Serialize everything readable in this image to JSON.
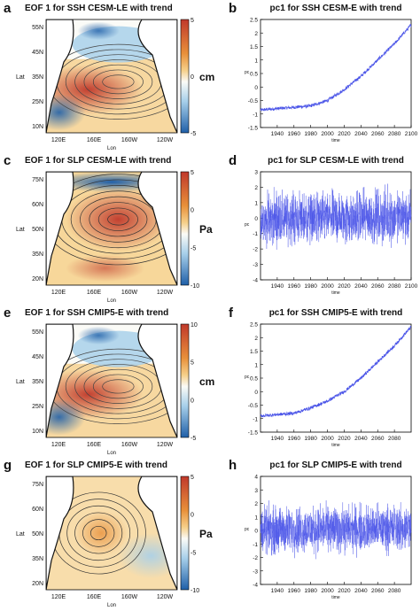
{
  "colors": {
    "warm_dark": "#c0392b",
    "warm_light": "#f6d08a",
    "neutral": "#fbfbf7",
    "cool_light": "#a8d0ea",
    "cool_dark": "#1f5fa8",
    "series": "#4b55e8",
    "land": "#ffffff",
    "coast": "#111111"
  },
  "chart_data": [
    {
      "panel": "a",
      "type": "heatmap",
      "title": "EOF 1  for SSH CESM-LE with trend",
      "xlabel": "Lon",
      "ylabel": "Lat",
      "xticks": [
        "120E",
        "160E",
        "160W",
        "120W"
      ],
      "yticks": [
        "10N",
        "25N",
        "35N",
        "45N",
        "55N"
      ],
      "colorbar": {
        "ticks": [
          "5",
          "0",
          "-5"
        ],
        "unit": "cm",
        "range": [
          -5,
          5
        ]
      },
      "pattern": "ssh"
    },
    {
      "panel": "b",
      "type": "line",
      "title": "pc1  for SSH CESM-E with trend",
      "xlabel": "time",
      "ylabel": "pc",
      "xticks": [
        "1940",
        "1960",
        "1980",
        "2000",
        "2020",
        "2040",
        "2060",
        "2080",
        "2100"
      ],
      "yticks": [
        "2.5",
        "2",
        "1.5",
        "1",
        "0.5",
        "0",
        "-0.5",
        "-1",
        "-1.5"
      ],
      "xlim": [
        1920,
        2100
      ],
      "ylim": [
        -1.5,
        2.5
      ],
      "series": [
        {
          "x": [
            1920,
            1940,
            1960,
            1980,
            2000,
            2020,
            2040,
            2060,
            2080,
            2100
          ],
          "values": [
            -0.85,
            -0.8,
            -0.75,
            -0.7,
            -0.5,
            -0.1,
            0.4,
            1.0,
            1.6,
            2.3
          ]
        }
      ],
      "noise": "low"
    },
    {
      "panel": "c",
      "type": "heatmap",
      "title": "EOF 1  for SLP CESM-LE with trend",
      "xlabel": "Lon",
      "ylabel": "Lat",
      "xticks": [
        "120E",
        "160E",
        "160W",
        "120W"
      ],
      "yticks": [
        "20N",
        "35N",
        "50N",
        "60N",
        "75N"
      ],
      "colorbar": {
        "ticks": [
          "5",
          "0",
          "-5",
          "-10"
        ],
        "unit": "Pa",
        "range": [
          -10,
          5
        ]
      },
      "pattern": "slp_cesm"
    },
    {
      "panel": "d",
      "type": "line",
      "title": "pc1  for SLP CESM-LE with trend",
      "xlabel": "time",
      "ylabel": "pc",
      "xticks": [
        "1940",
        "1960",
        "1980",
        "2000",
        "2020",
        "2040",
        "2060",
        "2080",
        "2100"
      ],
      "yticks": [
        "3",
        "2",
        "1",
        "0",
        "-1",
        "-2",
        "-3",
        "-4"
      ],
      "xlim": [
        1920,
        2100
      ],
      "ylim": [
        -4,
        3
      ],
      "series": [
        {
          "x": [
            1920,
            2100
          ],
          "values": [
            -0.1,
            0.1
          ]
        }
      ],
      "noise": "high"
    },
    {
      "panel": "e",
      "type": "heatmap",
      "title": "EOF 1  for SSH CMIP5-E with trend",
      "xlabel": "Lon",
      "ylabel": "Lat",
      "xticks": [
        "120E",
        "160E",
        "160W",
        "120W"
      ],
      "yticks": [
        "10N",
        "25N",
        "35N",
        "45N",
        "55N"
      ],
      "colorbar": {
        "ticks": [
          "10",
          "5",
          "0",
          "-5"
        ],
        "unit": "cm",
        "range": [
          -5,
          10
        ]
      },
      "pattern": "ssh"
    },
    {
      "panel": "f",
      "type": "line",
      "title": "pc1  for SSH CMIP5-E with trend",
      "xlabel": "time",
      "ylabel": "pc",
      "xticks": [
        "1940",
        "1960",
        "1980",
        "2000",
        "2020",
        "2040",
        "2060",
        "2080"
      ],
      "yticks": [
        "2.5",
        "2",
        "1.5",
        "1",
        "0.5",
        "0",
        "-0.5",
        "-1",
        "-1.5"
      ],
      "xlim": [
        1920,
        2100
      ],
      "ylim": [
        -1.5,
        2.5
      ],
      "series": [
        {
          "x": [
            1920,
            1940,
            1960,
            1980,
            2000,
            2020,
            2040,
            2060,
            2080,
            2100
          ],
          "values": [
            -0.9,
            -0.85,
            -0.8,
            -0.6,
            -0.35,
            0.0,
            0.5,
            1.1,
            1.7,
            2.4
          ]
        }
      ],
      "noise": "low"
    },
    {
      "panel": "g",
      "type": "heatmap",
      "title": "EOF 1  for SLP CMIP5-E with trend",
      "xlabel": "Lon",
      "ylabel": "Lat",
      "xticks": [
        "120E",
        "160E",
        "160W",
        "120W"
      ],
      "yticks": [
        "20N",
        "35N",
        "50N",
        "60N",
        "75N"
      ],
      "colorbar": {
        "ticks": [
          "5",
          "0",
          "-5",
          "-10"
        ],
        "unit": "Pa",
        "range": [
          -10,
          5
        ]
      },
      "pattern": "slp_cmip"
    },
    {
      "panel": "h",
      "type": "line",
      "title": "pc1  for SLP CMIP5-E with trend",
      "xlabel": "time",
      "ylabel": "pc",
      "xticks": [
        "1940",
        "1960",
        "1980",
        "2000",
        "2020",
        "2040",
        "2060",
        "2080"
      ],
      "yticks": [
        "4",
        "3",
        "2",
        "1",
        "0",
        "-1",
        "-2",
        "-3",
        "-4"
      ],
      "xlim": [
        1920,
        2100
      ],
      "ylim": [
        -4,
        4
      ],
      "series": [
        {
          "x": [
            1920,
            2100
          ],
          "values": [
            0.0,
            0.2
          ]
        }
      ],
      "noise": "high"
    }
  ]
}
